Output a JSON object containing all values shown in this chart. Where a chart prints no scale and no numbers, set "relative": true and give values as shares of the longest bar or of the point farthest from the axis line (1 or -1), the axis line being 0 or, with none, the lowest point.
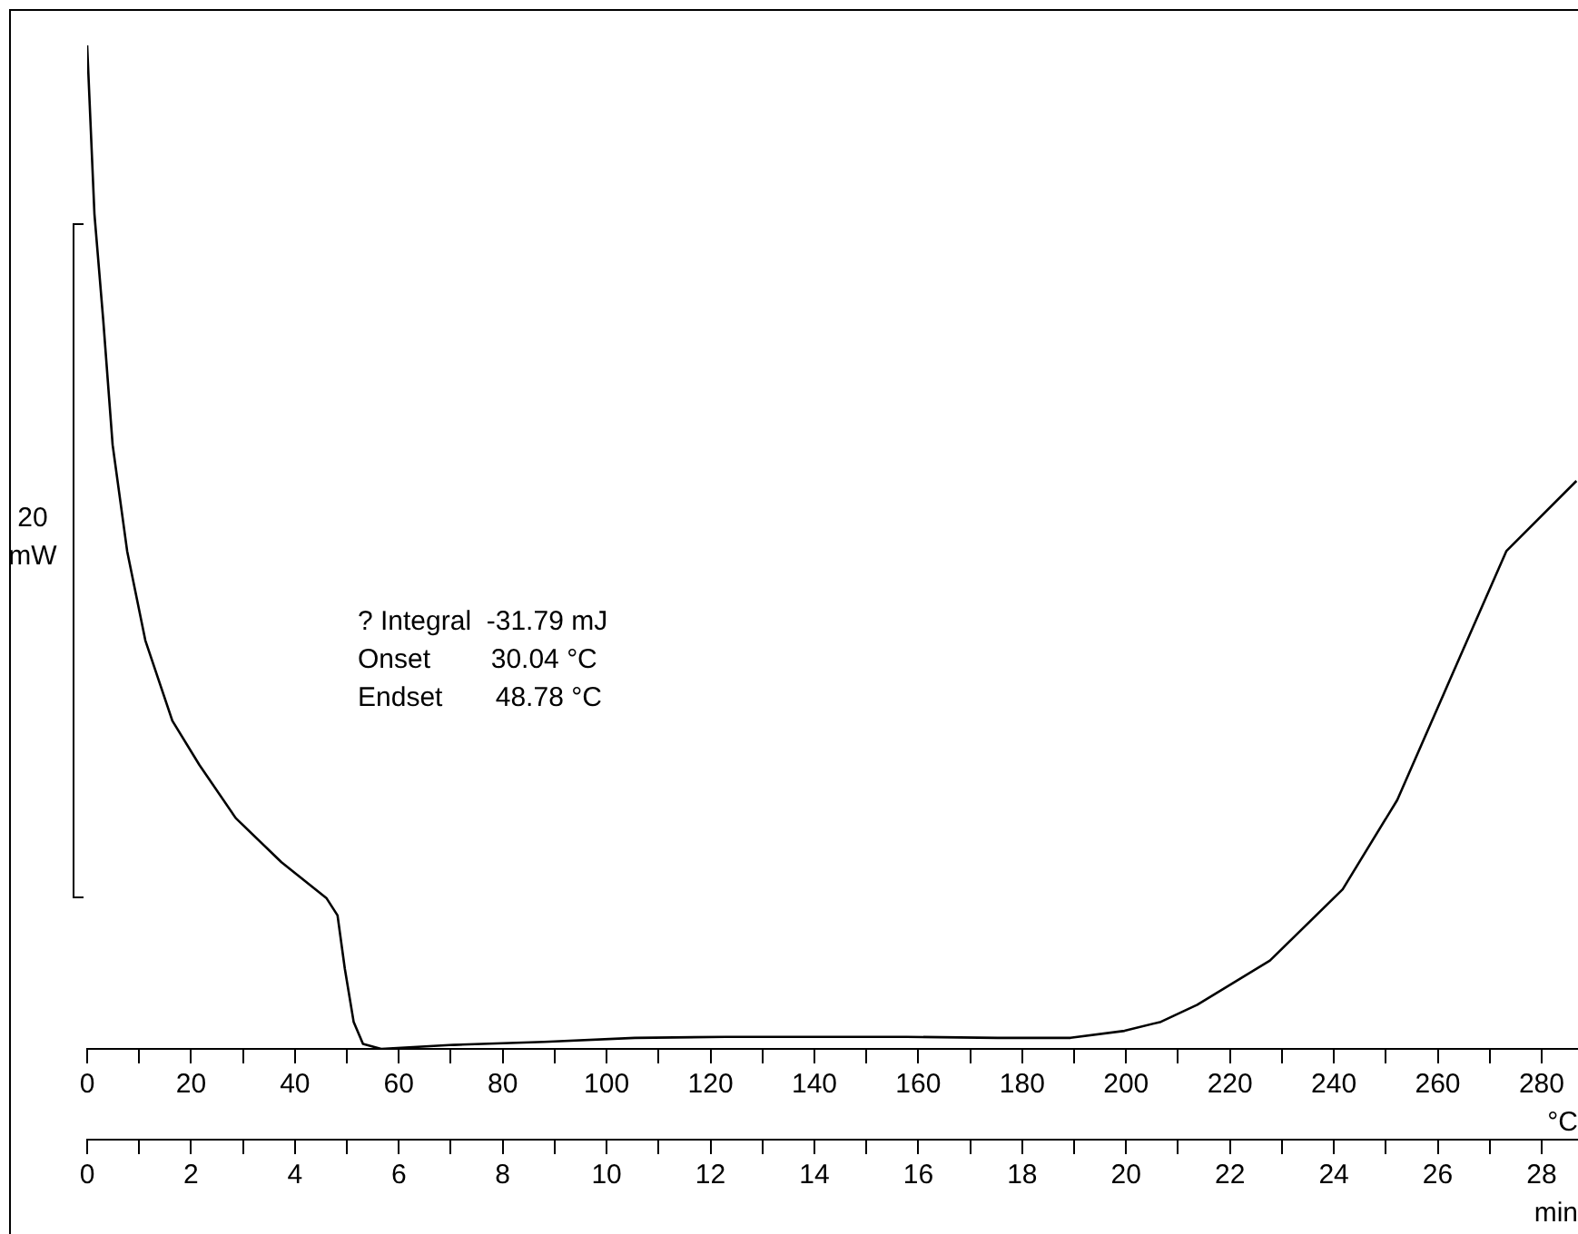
{
  "chart_data": {
    "type": "line",
    "relative": true,
    "color": "#000000",
    "x": [
      0,
      1.4,
      3.1,
      4.9,
      7.7,
      11.2,
      16.4,
      21.6,
      28.6,
      37.4,
      46.1,
      48.2,
      49.6,
      51.3,
      53.1,
      56.6,
      70.5,
      88,
      105.4,
      122.9,
      140.4,
      157.8,
      175.3,
      189.3,
      199.7,
      206.7,
      213.7,
      227.7,
      241.7,
      252.2,
      262.7,
      273.2,
      286.7
    ],
    "values": [
      1.0,
      0.832,
      0.726,
      0.602,
      0.496,
      0.407,
      0.327,
      0.283,
      0.23,
      0.186,
      0.15,
      0.133,
      0.08,
      0.027,
      0.005,
      0,
      0.004,
      0.007,
      0.011,
      0.012,
      0.012,
      0.012,
      0.011,
      0.011,
      0.018,
      0.027,
      0.044,
      0.088,
      0.159,
      0.248,
      0.372,
      0.496,
      0.566
    ],
    "xlabel": "°C",
    "x2label": "min",
    "xlim": [
      0,
      287
    ],
    "xticks": [
      0,
      {
        "value": 10,
        "label": null
      },
      20,
      {
        "value": 30,
        "label": null
      },
      40,
      {
        "value": 50,
        "label": null
      },
      60,
      {
        "value": 70,
        "label": null
      },
      80,
      {
        "value": 90,
        "label": null
      },
      100,
      {
        "value": 110,
        "label": null
      },
      120,
      {
        "value": 130,
        "label": null
      },
      140,
      {
        "value": 150,
        "label": null
      },
      160,
      {
        "value": 170,
        "label": null
      },
      180,
      {
        "value": 190,
        "label": null
      },
      200,
      {
        "value": 210,
        "label": null
      },
      220,
      {
        "value": 230,
        "label": null
      },
      240,
      {
        "value": 250,
        "label": null
      },
      260,
      {
        "value": 270,
        "label": null
      },
      280
    ],
    "x2lim": [
      0,
      28.7
    ],
    "x2ticks": [
      0,
      {
        "value": 1,
        "label": null
      },
      2,
      {
        "value": 3,
        "label": null
      },
      4,
      {
        "value": 5,
        "label": null
      },
      6,
      {
        "value": 7,
        "label": null
      },
      8,
      {
        "value": 9,
        "label": null
      },
      10,
      {
        "value": 11,
        "label": null
      },
      12,
      {
        "value": 13,
        "label": null
      },
      14,
      {
        "value": 15,
        "label": null
      },
      16,
      {
        "value": 17,
        "label": null
      },
      18,
      {
        "value": 19,
        "label": null
      },
      20,
      {
        "value": 21,
        "label": null
      },
      22,
      {
        "value": 23,
        "label": null
      },
      24,
      {
        "value": 25,
        "label": null
      },
      26,
      {
        "value": 27,
        "label": null
      },
      28
    ],
    "annotations": [
      "20\nmW",
      "? Integral  -31.79 mJ\nOnset        30.04 °C\nEndset       48.78 °C"
    ],
    "grid": false,
    "legend": false,
    "marker": "none",
    "line_style": "solid"
  }
}
